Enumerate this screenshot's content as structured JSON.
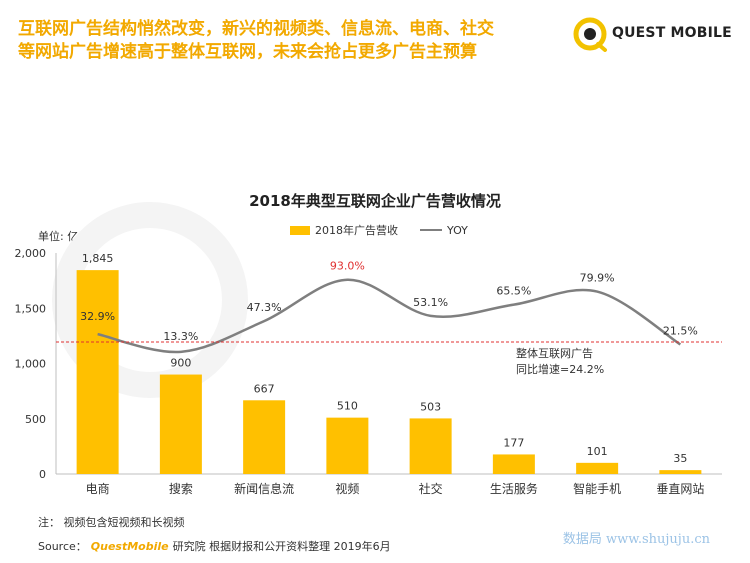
{
  "headline": {
    "line1": "互联网广告结构悄然改变，新兴的视频类、信息流、电商、社交",
    "line2": "等网站广告增速高于整体互联网，未来会抢占更多广告主预算"
  },
  "logo": {
    "text": "QUEST MOBILE",
    "icon": "quest-mobile-logo-icon",
    "color": "#F2C200"
  },
  "chart_data": {
    "type": "bar",
    "title": "2018年典型互联网企业广告营收情况",
    "unit_label": "单位: 亿元",
    "categories": [
      "电商",
      "搜索",
      "新闻信息流",
      "视频",
      "社交",
      "生活服务",
      "智能手机",
      "垂直网站"
    ],
    "series": [
      {
        "name": "2018年广告营收",
        "type": "bar",
        "values": [
          1845,
          900,
          667,
          510,
          503,
          177,
          101,
          35
        ],
        "color": "#FFC000"
      },
      {
        "name": "YOY",
        "type": "line",
        "values": [
          32.9,
          13.3,
          47.3,
          93.0,
          53.1,
          65.5,
          79.9,
          21.5
        ],
        "value_labels": [
          "32.9%",
          "13.3%",
          "47.3%",
          "93.0%",
          "53.1%",
          "65.5%",
          "79.9%",
          "21.5%"
        ],
        "color": "#7F7F7F",
        "highlight_color": "#E03030"
      }
    ],
    "y_ticks": [
      "0",
      "500",
      "1,000",
      "1,500",
      "2,000"
    ],
    "ylim": [
      0,
      2000
    ],
    "bar_value_labels": [
      "1,845",
      "900",
      "667",
      "510",
      "503",
      "177",
      "101",
      "35"
    ],
    "reference_line": {
      "value": 24.2,
      "label_line1": "整体互联网广告",
      "label_line2": "同比增速=24.2%",
      "color": "#E03030"
    },
    "legend_position": "top"
  },
  "note": "注：  视频包含短视频和长视频",
  "source": {
    "prefix": "Source：",
    "brand": "QuestMobile",
    "suffix": "研究院  根据财报和公开资料整理 2019年6月"
  },
  "watermark": "数据局  www.shujuju.cn"
}
